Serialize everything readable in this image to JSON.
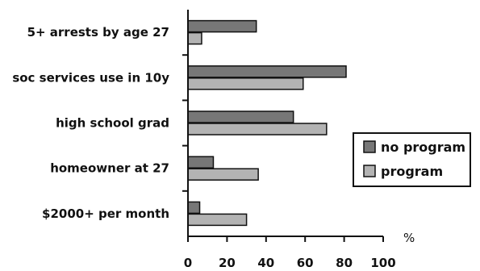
{
  "chart_data": {
    "type": "bar",
    "orientation": "horizontal",
    "categories": [
      "5+ arrests by age 27",
      "soc services use in 10y",
      "high school grad",
      "homeowner at 27",
      "$2000+ per month"
    ],
    "series": [
      {
        "name": "no program",
        "color": "#777777",
        "values": [
          35,
          81,
          54,
          13,
          6
        ]
      },
      {
        "name": "program",
        "color": "#b3b3b3",
        "values": [
          7,
          59,
          71,
          36,
          30
        ]
      }
    ],
    "x_ticks": [
      "0",
      "20",
      "40",
      "60",
      "80",
      "100"
    ],
    "xlim": [
      0,
      100
    ],
    "unit_label": "%",
    "legend_position": "right",
    "grid": false
  }
}
